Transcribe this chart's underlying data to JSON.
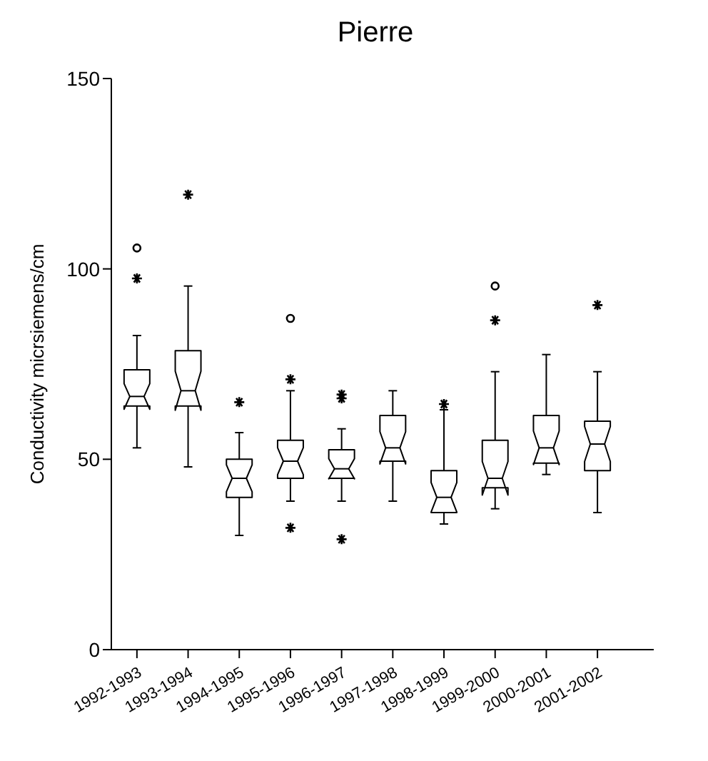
{
  "chart_data": {
    "type": "box",
    "title": "Pierre",
    "ylabel": "Conductivity micrsiemens/cm",
    "categories": [
      "1992-1993",
      "1993-1994",
      "1994-1995",
      "1995-1996",
      "1996-1997",
      "1997-1998",
      "1998-1999",
      "1999-2000",
      "2000-2001",
      "2001-2002"
    ],
    "boxes": [
      {
        "low": 53,
        "q1": 64,
        "median": 66.5,
        "q3": 73.5,
        "high": 82.5,
        "outliers": [
          105.5,
          97.5
        ]
      },
      {
        "low": 48,
        "q1": 64,
        "median": 68,
        "q3": 78.5,
        "high": 95.5,
        "outliers": [
          119.5
        ]
      },
      {
        "low": 30,
        "q1": 40,
        "median": 45,
        "q3": 50,
        "high": 57,
        "outliers": [
          65
        ]
      },
      {
        "low": 39,
        "q1": 45,
        "median": 49.5,
        "q3": 55,
        "high": 68,
        "outliers": [
          87,
          71,
          32
        ]
      },
      {
        "low": 39,
        "q1": 45,
        "median": 47.5,
        "q3": 52.5,
        "high": 58,
        "outliers": [
          67,
          66,
          29
        ]
      },
      {
        "low": 39,
        "q1": 49.5,
        "median": 53,
        "q3": 61.5,
        "high": 68
      },
      {
        "low": 33,
        "q1": 36,
        "median": 40,
        "q3": 47,
        "high": 63,
        "outliers": [
          64.5
        ]
      },
      {
        "low": 37,
        "q1": 42.5,
        "median": 45,
        "q3": 55,
        "high": 73,
        "outliers": [
          95.5,
          86.5
        ]
      },
      {
        "low": 46,
        "q1": 49,
        "median": 53,
        "q3": 61.5,
        "high": 77.5
      },
      {
        "low": 36,
        "q1": 47,
        "median": 54,
        "q3": 60,
        "high": 73,
        "outliers": [
          90.5
        ]
      }
    ],
    "ylim": [
      0,
      150
    ],
    "yticks": [
      0,
      50,
      100,
      150
    ]
  }
}
